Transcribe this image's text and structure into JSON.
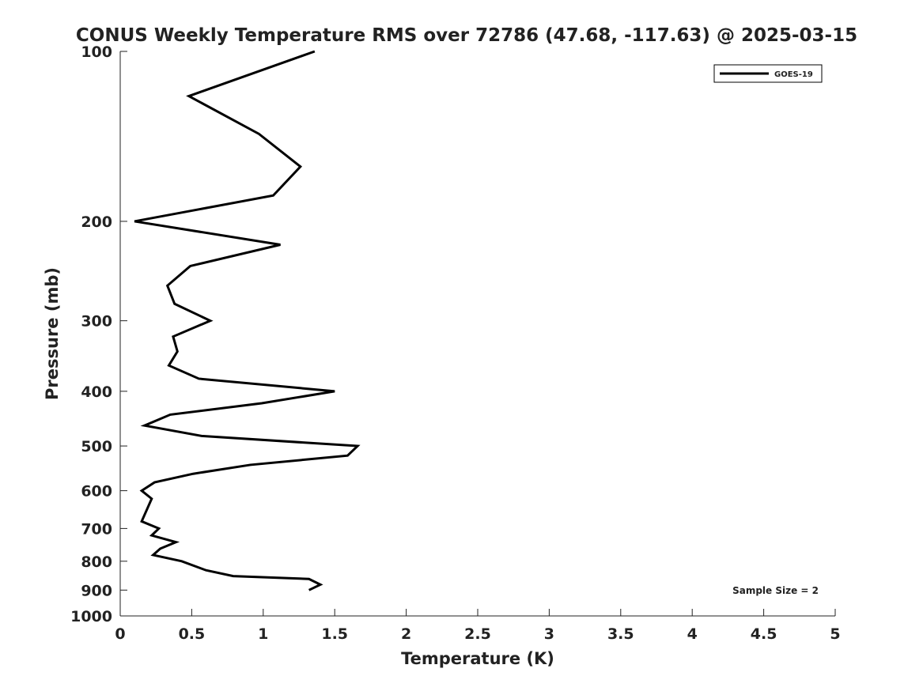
{
  "chart_data": {
    "type": "line",
    "title": "CONUS Weekly Temperature RMS over 72786 (47.68, -117.63) @ 2025-03-15",
    "xlabel": "Temperature (K)",
    "ylabel": "Pressure (mb)",
    "xlim": [
      0,
      5
    ],
    "ylim": [
      1000,
      100
    ],
    "yscale": "log",
    "grid": false,
    "legend_position": "top-right",
    "xticks": [
      "0",
      "0.5",
      "1",
      "1.5",
      "2",
      "2.5",
      "3",
      "3.5",
      "4",
      "4.5",
      "5"
    ],
    "yticks": [
      "100",
      "200",
      "300",
      "400",
      "500",
      "600",
      "700",
      "800",
      "900",
      "1000"
    ],
    "annotation": "Sample Size = 2",
    "series": [
      {
        "name": "GOES-19",
        "color": "#000000",
        "pressure": [
          100,
          120,
          140,
          160,
          180,
          200,
          220,
          240,
          260,
          280,
          300,
          320,
          340,
          360,
          380,
          400,
          420,
          440,
          460,
          480,
          500,
          520,
          540,
          560,
          580,
          600,
          620,
          680,
          700,
          720,
          740,
          760,
          780,
          800,
          830,
          850,
          860,
          880,
          900
        ],
        "temperature": [
          1.36,
          0.48,
          0.97,
          1.26,
          1.07,
          0.1,
          1.12,
          0.49,
          0.33,
          0.38,
          0.63,
          0.37,
          0.4,
          0.34,
          0.55,
          1.5,
          0.99,
          0.35,
          0.17,
          0.57,
          1.66,
          1.59,
          0.91,
          0.51,
          0.24,
          0.15,
          0.22,
          0.15,
          0.27,
          0.22,
          0.39,
          0.28,
          0.23,
          0.43,
          0.6,
          0.79,
          1.32,
          1.4,
          1.32
        ]
      }
    ]
  }
}
